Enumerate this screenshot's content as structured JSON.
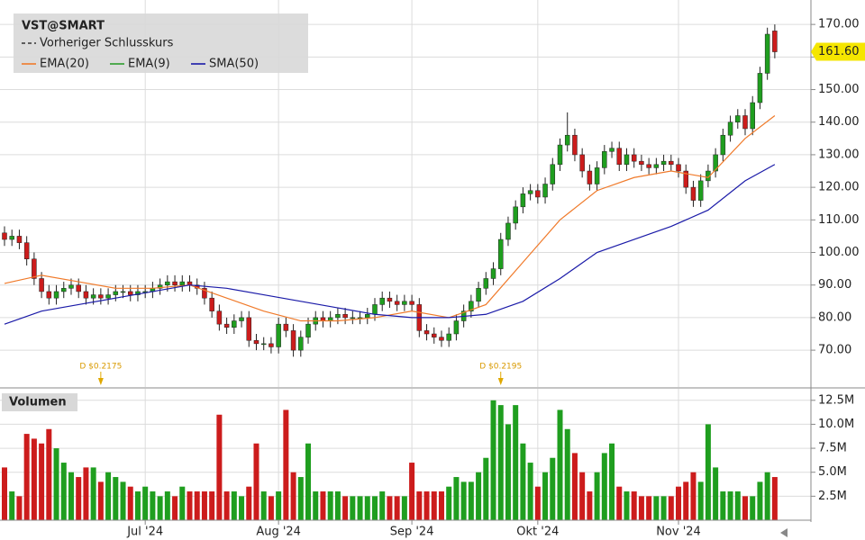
{
  "chart_data": {
    "type": "candlestick",
    "title": "VST@SMART",
    "legend": [
      "Vorheriger Schlusskurs",
      "EMA(20)",
      "EMA(9)",
      "SMA(50)"
    ],
    "legend_colors": [
      "#333333",
      "#f07a2a",
      "#2e9e2e",
      "#1a1aa8"
    ],
    "up_color": "#1f9e1f",
    "down_color": "#cc1c1c",
    "categories": [
      null,
      null,
      null,
      null,
      null,
      null,
      null,
      null,
      null,
      null,
      null,
      null,
      null,
      null,
      null,
      null,
      null,
      null,
      null,
      "Jul '24",
      null,
      null,
      null,
      null,
      null,
      null,
      null,
      null,
      null,
      null,
      null,
      null,
      null,
      null,
      null,
      null,
      null,
      "Aug '24",
      null,
      null,
      null,
      null,
      null,
      null,
      null,
      null,
      null,
      null,
      null,
      null,
      null,
      null,
      null,
      null,
      null,
      "Sep '24",
      null,
      null,
      null,
      null,
      null,
      null,
      null,
      null,
      null,
      null,
      null,
      null,
      null,
      null,
      null,
      null,
      "Okt '24",
      null,
      null,
      null,
      null,
      null,
      null,
      null,
      null,
      null,
      null,
      null,
      null,
      null,
      null,
      null,
      null,
      null,
      null,
      "Nov '24",
      null,
      null,
      null,
      null,
      null,
      null,
      null,
      null,
      null,
      null,
      null,
      null,
      null
    ],
    "open": [
      106,
      104,
      105,
      103,
      98,
      92,
      88,
      86,
      88,
      89,
      90,
      88,
      86,
      87,
      86,
      87,
      88,
      88,
      87,
      88,
      88,
      89,
      90,
      91,
      90,
      91,
      90,
      89,
      86,
      82,
      78,
      77,
      79,
      80,
      73,
      72,
      72,
      71,
      78,
      76,
      70,
      74,
      78,
      80,
      79,
      80,
      81,
      80,
      80,
      80,
      81,
      84,
      86,
      85,
      84,
      85,
      84,
      76,
      75,
      74,
      73,
      75,
      79,
      82,
      85,
      89,
      92,
      95,
      104,
      109,
      114,
      118,
      119,
      117,
      121,
      127,
      133,
      136,
      130,
      125,
      121,
      126,
      131,
      132,
      127,
      130,
      128,
      127,
      126,
      127,
      128,
      127,
      125,
      120,
      116,
      122,
      125,
      130,
      136,
      140,
      142,
      138,
      146,
      155,
      168
    ],
    "high": [
      108,
      107,
      107,
      105,
      100,
      94,
      90,
      90,
      91,
      92,
      92,
      90,
      89,
      89,
      89,
      90,
      90,
      90,
      90,
      90,
      91,
      92,
      93,
      93,
      93,
      93,
      92,
      91,
      88,
      84,
      80,
      81,
      82,
      82,
      75,
      74,
      74,
      80,
      80,
      78,
      76,
      80,
      82,
      82,
      82,
      83,
      83,
      82,
      82,
      83,
      86,
      88,
      88,
      87,
      87,
      87,
      86,
      78,
      77,
      76,
      77,
      81,
      84,
      87,
      91,
      94,
      97,
      106,
      111,
      116,
      120,
      121,
      121,
      123,
      129,
      135,
      143,
      138,
      132,
      127,
      128,
      133,
      134,
      134,
      132,
      132,
      130,
      129,
      129,
      130,
      130,
      129,
      127,
      122,
      124,
      127,
      132,
      138,
      142,
      144,
      144,
      148,
      157,
      169,
      170
    ],
    "low": [
      102,
      102,
      101,
      96,
      90,
      86,
      84,
      84,
      86,
      87,
      86,
      84,
      84,
      84,
      84,
      85,
      86,
      85,
      85,
      86,
      86,
      87,
      88,
      88,
      88,
      88,
      87,
      84,
      80,
      76,
      75,
      75,
      77,
      71,
      70,
      70,
      69,
      69,
      74,
      68,
      68,
      72,
      76,
      77,
      77,
      78,
      78,
      78,
      78,
      78,
      79,
      82,
      83,
      82,
      82,
      82,
      74,
      73,
      72,
      71,
      71,
      73,
      77,
      80,
      83,
      87,
      90,
      93,
      102,
      107,
      112,
      116,
      115,
      115,
      119,
      125,
      131,
      128,
      123,
      119,
      119,
      124,
      129,
      125,
      125,
      126,
      125,
      124,
      124,
      125,
      125,
      123,
      118,
      114,
      114,
      120,
      123,
      128,
      134,
      138,
      136,
      136,
      144,
      153,
      159.6
    ],
    "close": [
      104,
      105,
      103,
      98,
      92,
      88,
      86,
      88,
      89,
      90,
      88,
      86,
      87,
      86,
      87,
      88,
      88,
      87,
      88,
      88,
      89,
      90,
      91,
      90,
      91,
      90,
      89,
      86,
      82,
      78,
      77,
      79,
      80,
      73,
      72,
      72,
      71,
      78,
      76,
      70,
      74,
      78,
      80,
      79,
      80,
      81,
      80,
      80,
      80,
      81,
      84,
      86,
      85,
      84,
      85,
      84,
      76,
      75,
      74,
      73,
      75,
      79,
      82,
      85,
      89,
      92,
      95,
      104,
      109,
      114,
      118,
      119,
      117,
      121,
      127,
      133,
      136,
      130,
      125,
      121,
      126,
      131,
      132,
      127,
      130,
      128,
      127,
      126,
      127,
      128,
      127,
      125,
      120,
      116,
      122,
      125,
      130,
      136,
      140,
      142,
      138,
      146,
      155,
      167,
      161.6
    ],
    "last_price": {
      "value": 161.6,
      "label": "161.60"
    },
    "overlays": [
      {
        "name": "EMA(20)",
        "color": "#f07a2a",
        "x": [
          0,
          5,
          10,
          15,
          20,
          25,
          30,
          35,
          40,
          45,
          50,
          55,
          60,
          65,
          70,
          75,
          80,
          85,
          90,
          95,
          100,
          104
        ],
        "values": [
          90.5,
          93,
          91,
          89,
          89,
          90,
          86,
          82,
          79,
          79,
          80,
          82,
          80,
          84,
          97,
          110,
          119,
          123,
          125,
          123,
          135,
          142
        ]
      },
      {
        "name": "SMA(50)",
        "color": "#1a1aa8",
        "x": [
          0,
          5,
          10,
          15,
          20,
          25,
          30,
          35,
          40,
          45,
          50,
          55,
          60,
          65,
          70,
          75,
          80,
          85,
          90,
          95,
          100,
          104
        ],
        "values": [
          78,
          82,
          84,
          86,
          88,
          90,
          89,
          87,
          85,
          83,
          81,
          80,
          80,
          81,
          85,
          92,
          100,
          104,
          108,
          113,
          122,
          127
        ]
      }
    ],
    "annotations": [
      {
        "text": "D $0.2175",
        "index": 13
      },
      {
        "text": "D $0.2195",
        "index": 67
      }
    ],
    "ylim": [
      58.7,
      177.5
    ],
    "yticks": [
      {
        "value": 70,
        "label": "70.00"
      },
      {
        "value": 80,
        "label": "80.00"
      },
      {
        "value": 90,
        "label": "90.00"
      },
      {
        "value": 100,
        "label": "100.00"
      },
      {
        "value": 110,
        "label": "110.00"
      },
      {
        "value": 120,
        "label": "120.00"
      },
      {
        "value": 130,
        "label": "130.00"
      },
      {
        "value": 140,
        "label": "140.00"
      },
      {
        "value": 150,
        "label": "150.00"
      },
      {
        "value": 160,
        "label": "160.00"
      },
      {
        "value": 170,
        "label": "170.00"
      }
    ],
    "grid": true,
    "volume": {
      "title": "Volumen",
      "values": [
        5.5,
        3,
        2.5,
        9,
        8.5,
        8,
        9.5,
        7.5,
        6,
        5,
        4.5,
        5.5,
        5.5,
        4,
        5,
        4.5,
        4,
        3.5,
        3,
        3.5,
        3,
        2.5,
        3,
        2.5,
        3.5,
        3,
        3,
        3,
        3,
        11,
        3,
        3,
        2.5,
        3.5,
        8,
        3,
        2.5,
        3,
        11.5,
        5,
        4.5,
        8,
        3,
        3,
        3,
        3,
        2.5,
        2.5,
        2.5,
        2.5,
        2.5,
        3,
        2.5,
        2.5,
        2.5,
        6,
        3,
        3,
        3,
        3,
        3.5,
        4.5,
        4,
        4,
        5,
        6.5,
        12.5,
        12,
        10,
        12,
        8,
        6,
        3.5,
        5,
        6.5,
        11.5,
        9.5,
        7,
        5,
        3,
        5,
        7,
        8,
        3.5,
        3,
        3,
        2.5,
        2.5,
        2.5,
        2.5,
        2.5,
        3.5,
        4,
        5,
        4,
        10,
        5.5,
        3,
        3,
        3,
        2.5,
        2.5,
        4,
        5,
        4.5
      ],
      "ylim": [
        0,
        13.7
      ],
      "yticks": [
        {
          "value": 2.5,
          "label": "2.5M"
        },
        {
          "value": 5,
          "label": "5.0M"
        },
        {
          "value": 7.5,
          "label": "7.5M"
        },
        {
          "value": 10,
          "label": "10.0M"
        },
        {
          "value": 12.5,
          "label": "12.5M"
        }
      ]
    }
  }
}
